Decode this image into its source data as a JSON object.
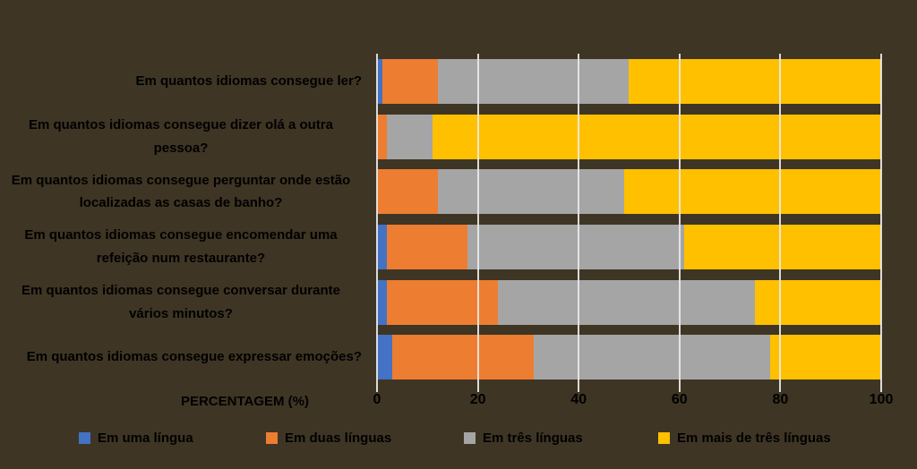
{
  "page": {
    "background_color": "#3E3524",
    "text_color": "#000000",
    "gridline_color": "#EBEBEB"
  },
  "chart_data": {
    "type": "bar",
    "orientation": "horizontal",
    "stacked": true,
    "title": "",
    "xlabel": "PERCENTAGEM (%)",
    "ylabel": "",
    "xlim": [
      0,
      100
    ],
    "x_ticks": [
      0,
      20,
      40,
      60,
      80,
      100
    ],
    "grid": true,
    "legend_position": "bottom",
    "categories": [
      "Em quantos idiomas consegue ler?",
      "Em quantos idiomas consegue dizer olá a outra pessoa?",
      "Em quantos idiomas consegue perguntar onde estão localizadas as casas de banho?",
      "Em quantos idiomas consegue encomendar uma refeição num restaurante?",
      "Em quantos idiomas consegue conversar durante vários minutos?",
      "Em quantos idiomas consegue expressar emoções?"
    ],
    "series": [
      {
        "name": "Em uma língua",
        "color": "#4472C4",
        "values": [
          1,
          0,
          0,
          2,
          2,
          3
        ]
      },
      {
        "name": "Em duas línguas",
        "color": "#ED7D31",
        "values": [
          11,
          2,
          12,
          16,
          22,
          28
        ]
      },
      {
        "name": "Em três línguas",
        "color": "#A5A5A5",
        "values": [
          38,
          9,
          37,
          43,
          51,
          47
        ]
      },
      {
        "name": "Em mais de três línguas",
        "color": "#FFC000",
        "values": [
          50,
          89,
          51,
          39,
          25,
          22
        ]
      }
    ]
  }
}
